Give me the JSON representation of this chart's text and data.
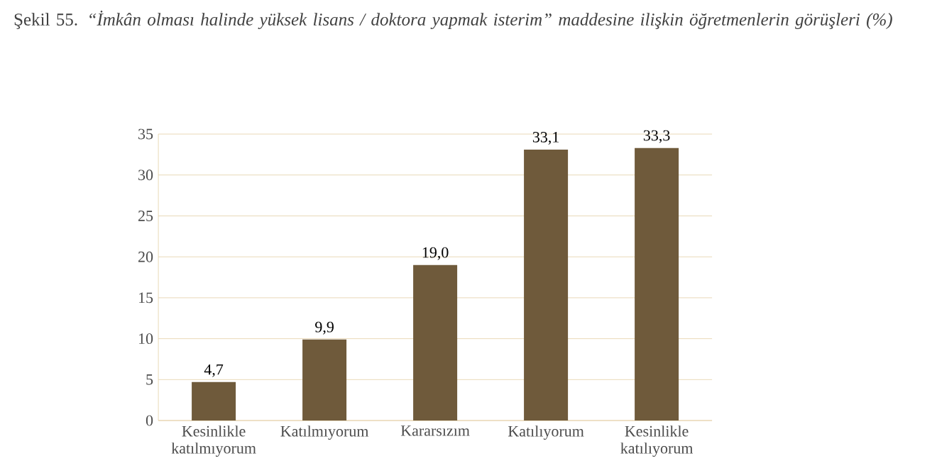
{
  "chart_data": {
    "type": "bar",
    "title": "Şekil 55. *“İmkân olması halinde yüksek lisans / doktora yapmak isterim” maddesine ilişkin öğretmenlerin görüşleri (%)*",
    "categories": [
      "Kesinlikle katılmıyorum",
      "Katılmıyorum",
      "Kararsızım",
      "Katılıyorum",
      "Kesinlikle katılıyorum"
    ],
    "values": [
      4.7,
      9.9,
      19.0,
      33.1,
      33.3
    ],
    "value_labels": [
      "4,7",
      "9,9",
      "19,0",
      "33,1",
      "33,3"
    ],
    "color": "#6f5a3b",
    "ylim": [
      0,
      35
    ],
    "yticks": [
      0,
      5,
      10,
      15,
      20,
      25,
      30,
      35
    ],
    "grid": "y"
  }
}
